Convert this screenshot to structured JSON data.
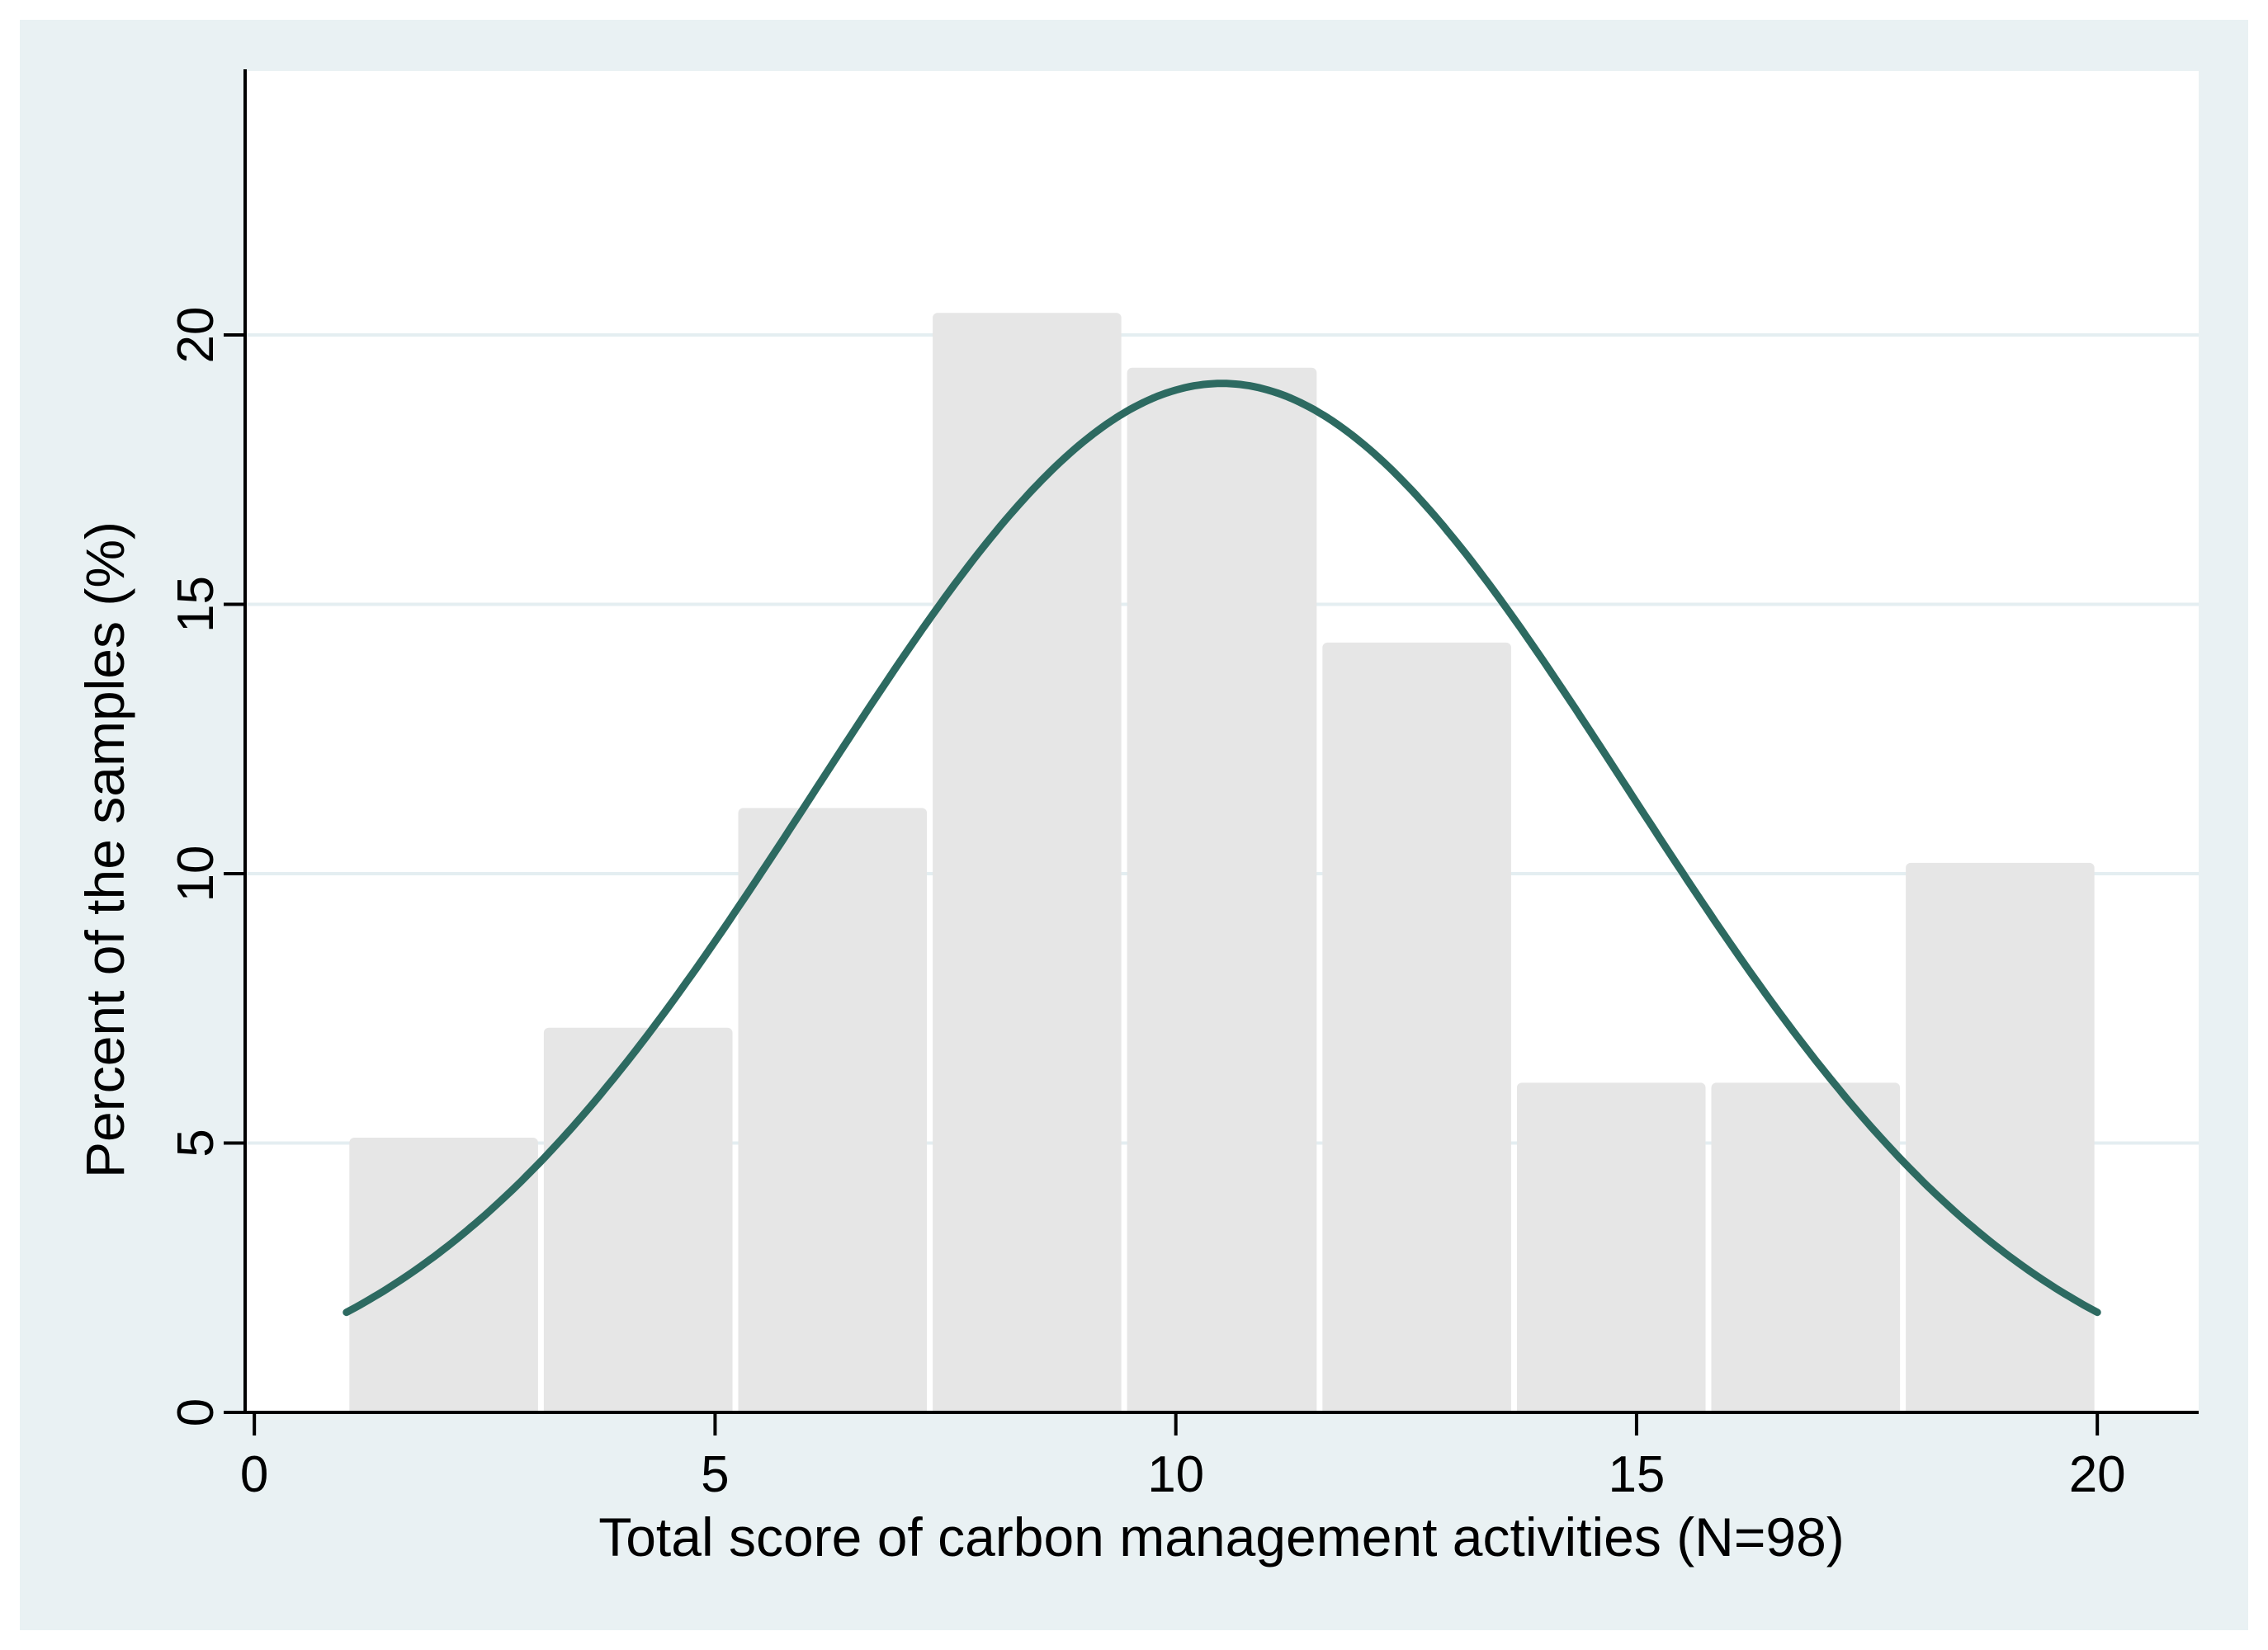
{
  "figure": {
    "title": "",
    "x_axis_title": "Total score of carbon management activities (N=98)",
    "y_axis_title": "Percent of the samples (%)"
  },
  "chart_data": {
    "type": "bar",
    "subtype": "histogram-with-normal-curve",
    "title": "",
    "xlabel": "Total score of carbon management activities (N=98)",
    "ylabel": "Percent of the samples (%)",
    "n": 98,
    "x_ticks": [
      0,
      5,
      10,
      15,
      20
    ],
    "y_ticks": [
      0,
      5,
      10,
      15,
      20
    ],
    "xlim": [
      -0.1,
      21.1
    ],
    "ylim": [
      0,
      24.9
    ],
    "grid": "horizontal",
    "bin_edges": [
      1,
      3.11,
      5.22,
      7.33,
      9.44,
      11.56,
      13.67,
      15.78,
      17.89,
      20
    ],
    "values_percent": [
      5.1,
      7.14,
      11.22,
      20.41,
      19.39,
      14.29,
      6.12,
      6.12,
      10.2
    ],
    "counts": [
      5,
      7,
      11,
      20,
      19,
      14,
      6,
      6,
      10
    ],
    "normal_overlay": {
      "mean": 10.5,
      "sd": 4.4,
      "peak_percent": 19.1,
      "x_start": 1,
      "x_end": 20
    },
    "colors": {
      "page_margin": "#ffffff",
      "canvas": "#e9f1f3",
      "plot_bg": "#ffffff",
      "gridline": "#e4eef1",
      "bar_fill": "#e6e6e6",
      "bar_gap": "#ffffff",
      "curve": "#2d6a61",
      "axis": "#000000",
      "text": "#000000"
    }
  }
}
